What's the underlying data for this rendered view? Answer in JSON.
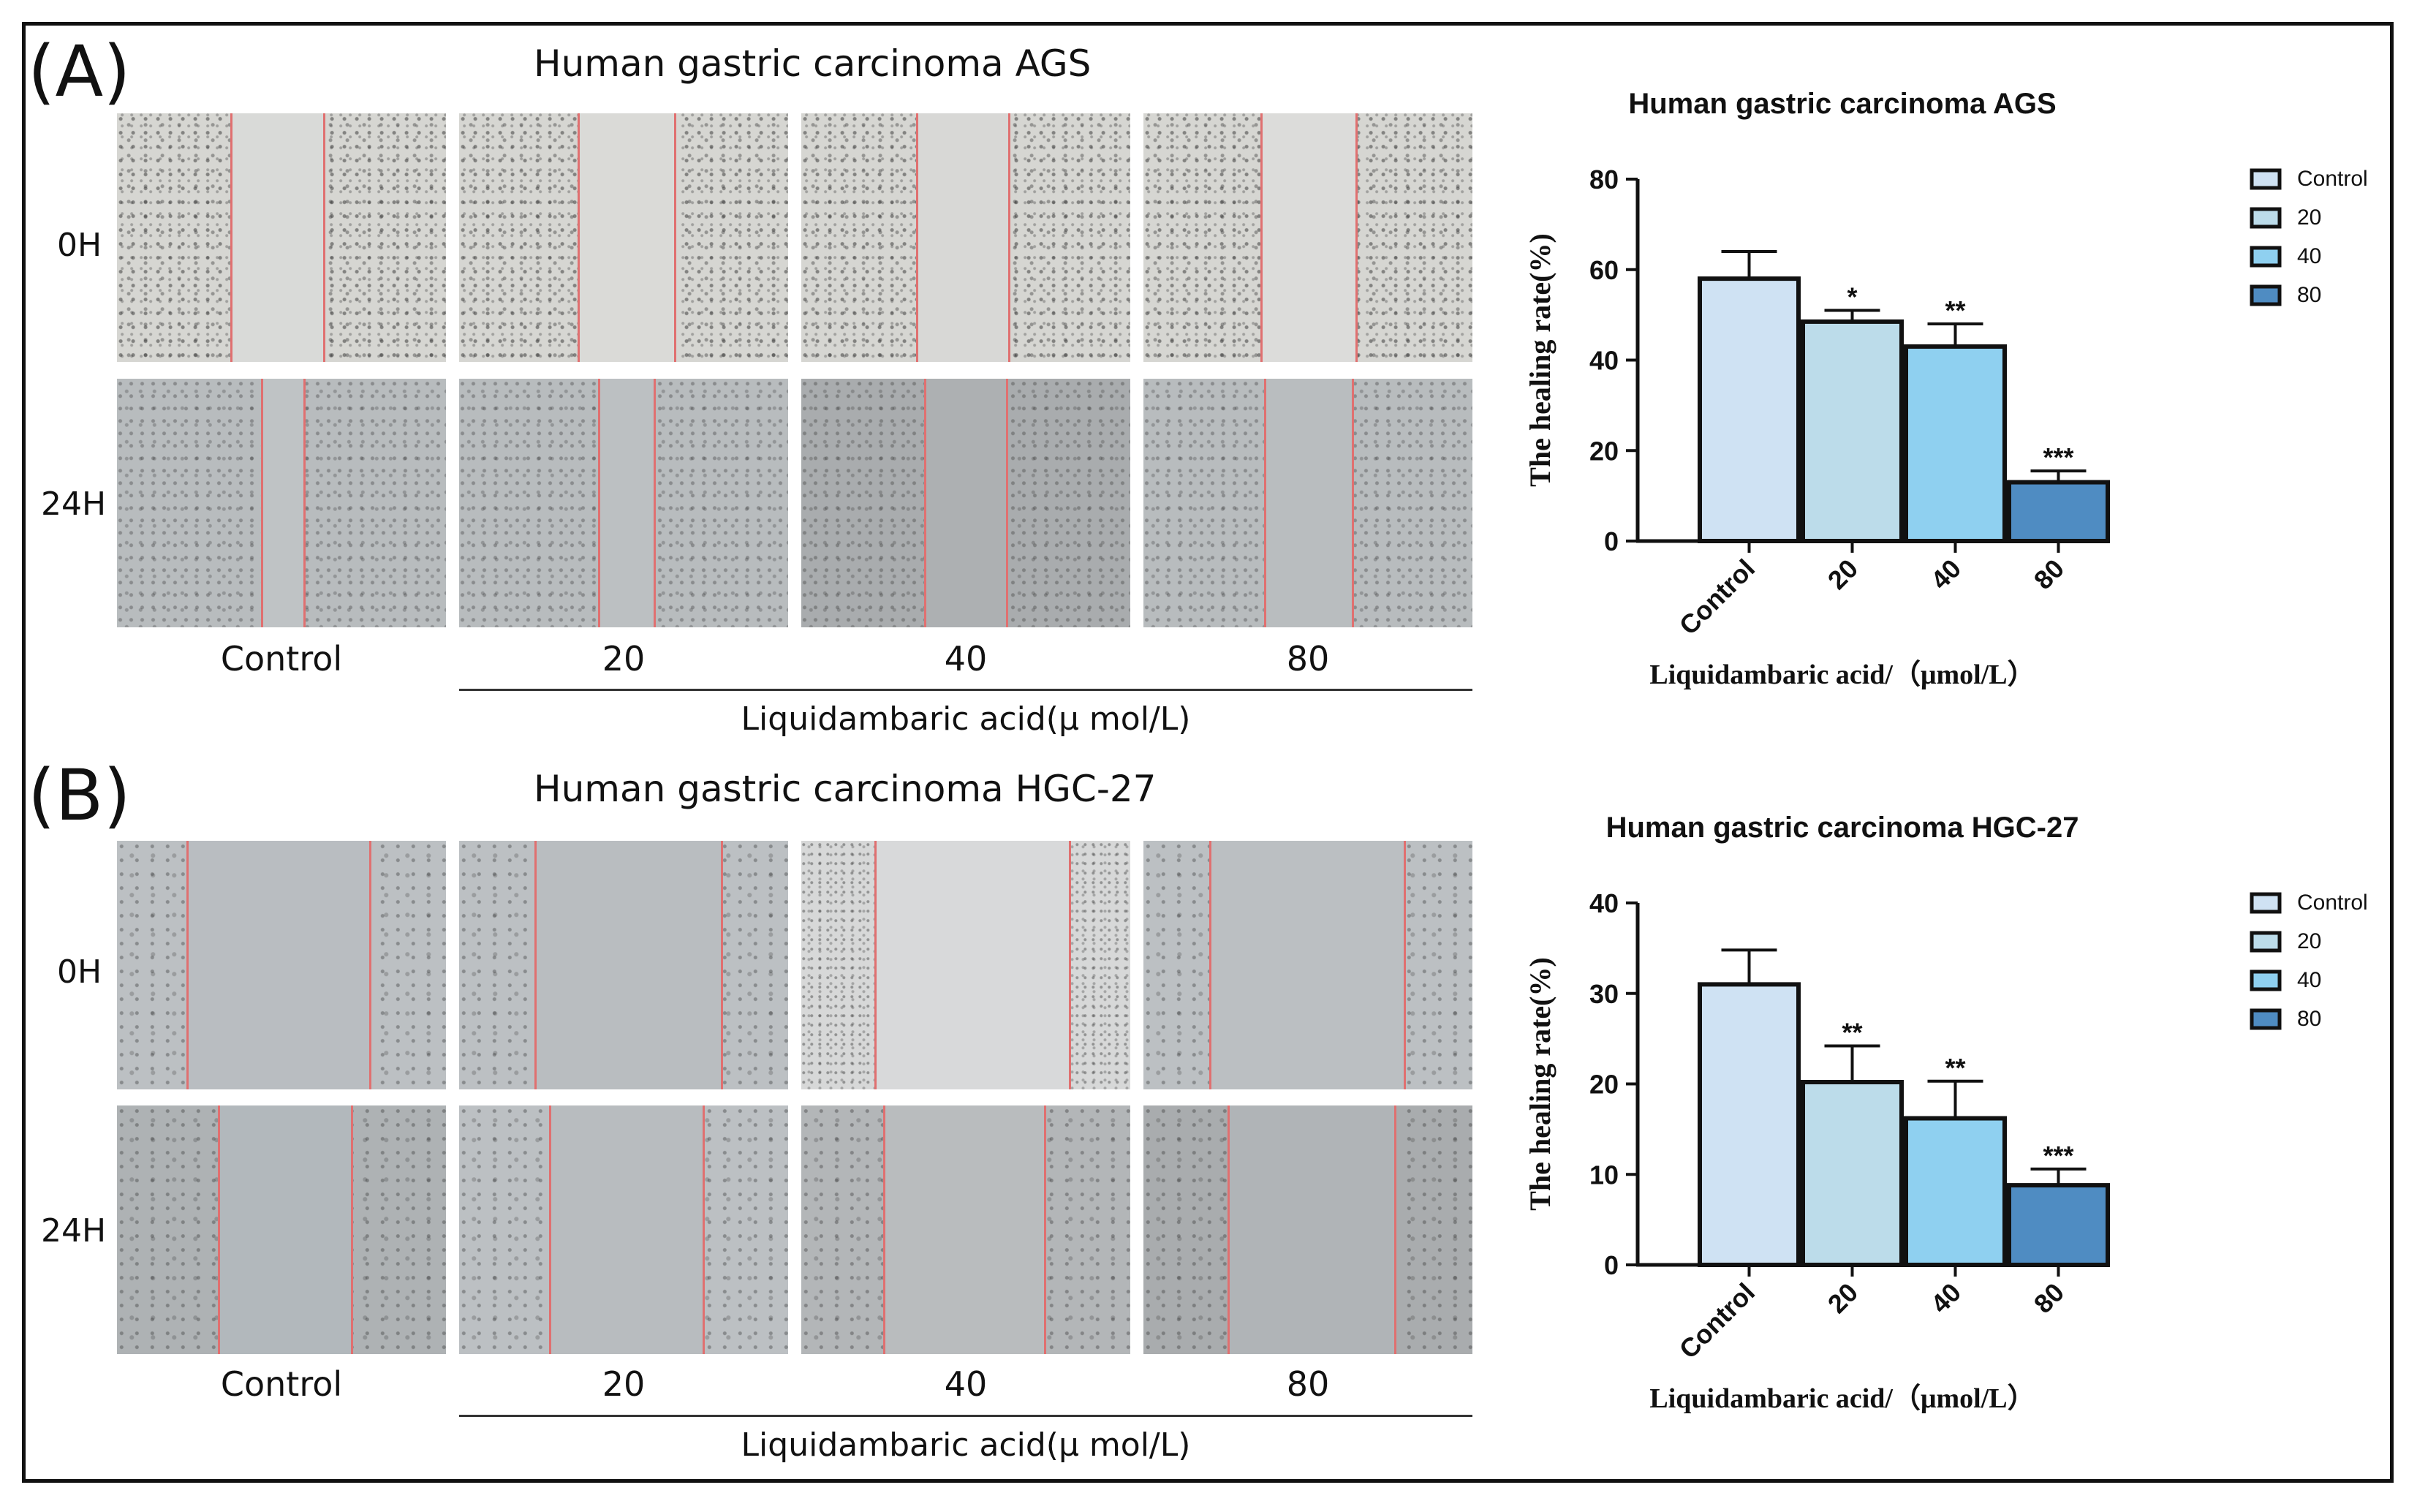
{
  "figure": {
    "panels": [
      {
        "letter": "(A)",
        "title": "Human gastric carcinoma AGS",
        "rows": [
          "0H",
          "24H"
        ],
        "columns": [
          "Control",
          "20",
          "40",
          "80"
        ],
        "x_caption": "Liquidambaric acid(μ mol/L)"
      },
      {
        "letter": "(B)",
        "title": "Human gastric carcinoma HGC-27",
        "rows": [
          "0H",
          "24H"
        ],
        "columns": [
          "Control",
          "20",
          "40",
          "80"
        ],
        "x_caption": "Liquidambaric acid(μ mol/L)"
      }
    ]
  },
  "chart_data": [
    {
      "type": "bar",
      "title": "Human gastric carcinoma AGS",
      "categories": [
        "Control",
        "20",
        "40",
        "80"
      ],
      "values": [
        58,
        48.5,
        43,
        13
      ],
      "errors": [
        6,
        2.5,
        5,
        2.5
      ],
      "significance": [
        "",
        "*",
        "**",
        "***"
      ],
      "colors": [
        "#cfe2f3",
        "#bcdcea",
        "#8fd0f0",
        "#4f8cc2"
      ],
      "xlabel": "Liquidambaric acid/（μmol/L）",
      "ylabel": "The healing rate(%)",
      "ylim": [
        0,
        80
      ],
      "yticks": [
        "0",
        "20",
        "40",
        "60",
        "80"
      ],
      "legend": [
        "Control",
        "20",
        "40",
        "80"
      ],
      "legend_position": "top-right",
      "grid": false
    },
    {
      "type": "bar",
      "title": "Human gastric carcinoma HGC-27",
      "categories": [
        "Control",
        "20",
        "40",
        "80"
      ],
      "values": [
        31,
        20.2,
        16.2,
        8.8
      ],
      "errors": [
        3.8,
        4,
        4.1,
        1.8
      ],
      "significance": [
        "",
        "**",
        "**",
        "***"
      ],
      "colors": [
        "#cfe2f3",
        "#bcdcea",
        "#8fd0f0",
        "#4f8cc2"
      ],
      "xlabel": "Liquidambaric acid/（μmol/L）",
      "ylabel": "The healing rate(%)",
      "ylim": [
        0,
        40
      ],
      "yticks": [
        "0",
        "10",
        "20",
        "30",
        "40"
      ],
      "legend": [
        "Control",
        "20",
        "40",
        "80"
      ],
      "legend_position": "top-right",
      "grid": false
    }
  ]
}
